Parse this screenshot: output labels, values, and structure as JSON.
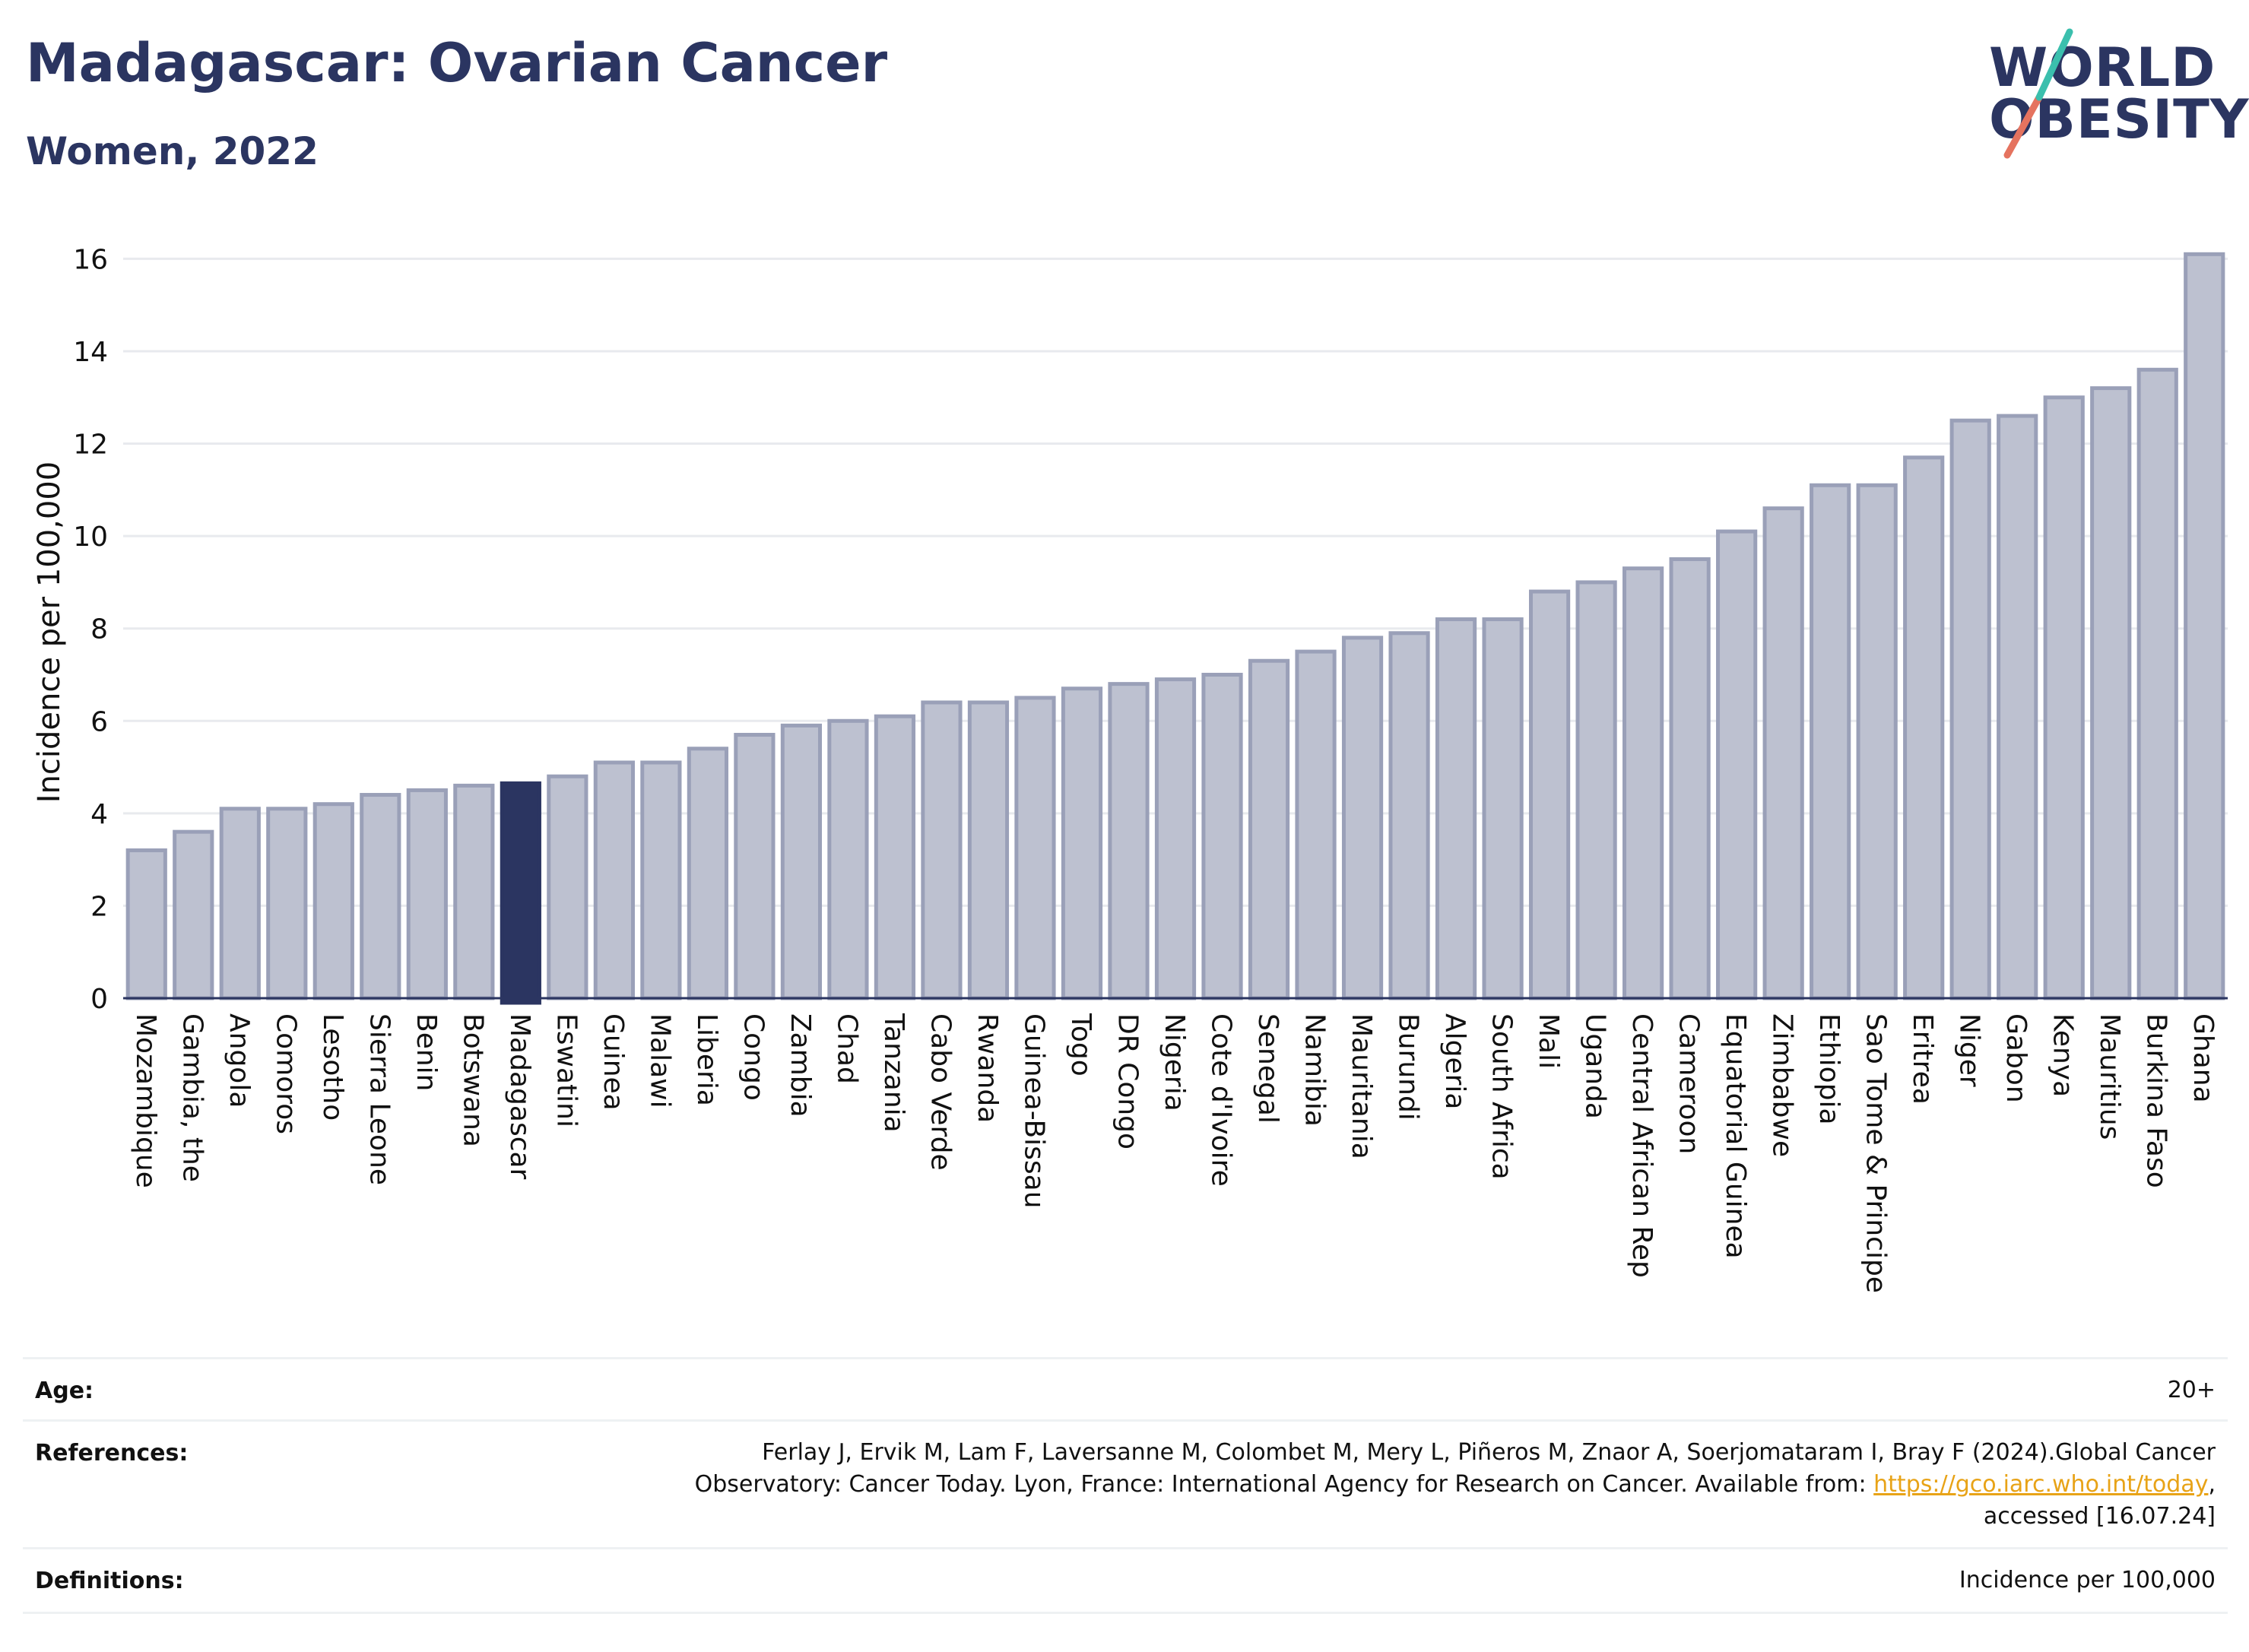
{
  "header": {
    "title": "Madagascar: Ovarian Cancer",
    "subtitle": "Women, 2022"
  },
  "logo": {
    "line1": "WORLD",
    "line2": "OBESITY"
  },
  "chart_data": {
    "type": "bar",
    "ylabel": "Incidence per 100,000",
    "ylim": [
      0,
      16.5
    ],
    "yticks": [
      0,
      2,
      4,
      6,
      8,
      10,
      12,
      14,
      16
    ],
    "grid": true,
    "highlight": "Madagascar",
    "colors": {
      "bar": "#bdc1d0",
      "bar_edge": "#9aa0b8",
      "highlight": "#2b3561",
      "grid": "#e8eaee",
      "axis": "#2b3561"
    },
    "categories": [
      "Mozambique",
      "Gambia, the",
      "Angola",
      "Comoros",
      "Lesotho",
      "Sierra Leone",
      "Benin",
      "Botswana",
      "Madagascar",
      "Eswatini",
      "Guinea",
      "Malawi",
      "Liberia",
      "Congo",
      "Zambia",
      "Chad",
      "Tanzania",
      "Cabo Verde",
      "Rwanda",
      "Guinea-Bissau",
      "Togo",
      "DR Congo",
      "Nigeria",
      "Cote d'Ivoire",
      "Senegal",
      "Namibia",
      "Mauritania",
      "Burundi",
      "Algeria",
      "South Africa",
      "Mali",
      "Uganda",
      "Central African Rep",
      "Cameroon",
      "Equatorial Guinea",
      "Zimbabwe",
      "Ethiopia",
      "Sao Tome & Principe",
      "Eritrea",
      "Niger",
      "Gabon",
      "Kenya",
      "Mauritius",
      "Burkina Faso",
      "Ghana"
    ],
    "values": [
      3.2,
      3.6,
      4.1,
      4.1,
      4.2,
      4.4,
      4.5,
      4.6,
      4.65,
      4.8,
      5.1,
      5.1,
      5.4,
      5.7,
      5.9,
      6.0,
      6.1,
      6.4,
      6.4,
      6.5,
      6.7,
      6.8,
      6.9,
      7.0,
      7.3,
      7.5,
      7.8,
      7.9,
      8.2,
      8.2,
      8.8,
      9.0,
      9.3,
      9.5,
      10.1,
      10.6,
      11.1,
      11.1,
      11.7,
      12.5,
      12.6,
      13.0,
      13.2,
      13.6,
      16.1
    ]
  },
  "info": {
    "age": {
      "label": "Age:",
      "value": "20+"
    },
    "references": {
      "label": "References:",
      "line1": "Ferlay J, Ervik M, Lam F, Laversanne M, Colombet M, Mery L, Piñeros M, Znaor A, Soerjomataram I, Bray F (2024).Global Cancer",
      "line2_pre": "Observatory: Cancer Today. Lyon, France: International Agency for Research on Cancer. Available from: ",
      "link": "https://gco.iarc.who.int/today",
      "line2_post": ",",
      "line3": "accessed [16.07.24]"
    },
    "definitions": {
      "label": "Definitions:",
      "value": "Incidence per 100,000"
    }
  }
}
